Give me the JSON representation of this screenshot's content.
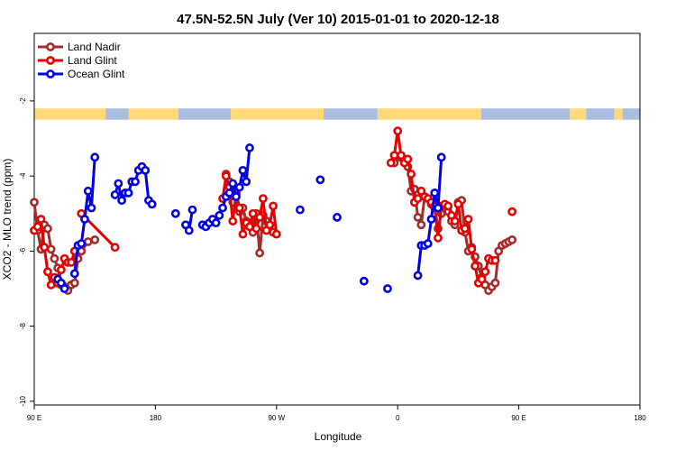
{
  "chart_data": {
    "type": "line",
    "title": "47.5N-52.5N July (Ver 10)   2015-01-01 to 2020-12-18",
    "xlabel": "Longitude",
    "ylabel": "XCO2 - MLO trend (ppm)",
    "x_ticks": [
      {
        "value": 90,
        "label": "90 E"
      },
      {
        "value": 180,
        "label": "180"
      },
      {
        "value": 270,
        "label": "90 W"
      },
      {
        "value": 360,
        "label": "0"
      },
      {
        "value": 450,
        "label": "90 E"
      },
      {
        "value": 540,
        "label": "180"
      }
    ],
    "y_ticks": [
      {
        "value": -2,
        "label": "-2"
      },
      {
        "value": -4,
        "label": "-4"
      },
      {
        "value": -6,
        "label": "-6"
      },
      {
        "value": -8,
        "label": "-8"
      },
      {
        "value": -10,
        "label": "-10"
      }
    ],
    "xlim": [
      90,
      540
    ],
    "ylim": [
      -10.1,
      -0.2
    ],
    "legend_position": "top-left",
    "land_ocean_band": {
      "y_top": -2.2,
      "y_bottom": -2.5,
      "colors": {
        "land": "#ffd97a",
        "ocean": "#a9bedf"
      },
      "segments": [
        {
          "start": 90,
          "end": 143,
          "type": "land"
        },
        {
          "start": 143,
          "end": 160,
          "type": "ocean"
        },
        {
          "start": 160,
          "end": 197,
          "type": "land"
        },
        {
          "start": 197,
          "end": 236,
          "type": "ocean"
        },
        {
          "start": 236,
          "end": 305,
          "type": "land"
        },
        {
          "start": 305,
          "end": 345,
          "type": "ocean"
        },
        {
          "start": 345,
          "end": 422,
          "type": "land"
        },
        {
          "start": 422,
          "end": 488,
          "type": "ocean"
        },
        {
          "start": 488,
          "end": 500,
          "type": "land"
        },
        {
          "start": 500,
          "end": 521,
          "type": "ocean"
        },
        {
          "start": 521,
          "end": 527,
          "type": "land"
        },
        {
          "start": 527,
          "end": 540,
          "type": "ocean"
        }
      ]
    },
    "series": [
      {
        "name": "Land Nadir",
        "color": "#a52a2a",
        "segments": [
          [
            [
              90,
              -4.7
            ],
            [
              92.5,
              -5.45
            ],
            [
              95,
              -5.95
            ],
            [
              97.5,
              -5.3
            ],
            [
              100,
              -5.4
            ],
            [
              102.5,
              -5.95
            ],
            [
              105,
              -6.2
            ],
            [
              107.5,
              -6.45
            ],
            [
              110,
              -6.9
            ],
            [
              112.5,
              -6.95
            ],
            [
              115,
              -7.05
            ],
            [
              117.5,
              -6.9
            ],
            [
              120,
              -6.85
            ],
            [
              122.5,
              -6.2
            ],
            [
              125,
              -6.0
            ],
            [
              130,
              -5.75
            ],
            [
              135,
              -5.7
            ]
          ],
          [
            [
              232.5,
              -3.95
            ],
            [
              235,
              -4.15
            ],
            [
              237.5,
              -4.7
            ],
            [
              240,
              -4.5
            ],
            [
              242.5,
              -4.95
            ],
            [
              245,
              -4.85
            ],
            [
              247.5,
              -5.2
            ],
            [
              250,
              -5.25
            ],
            [
              252.5,
              -5.5
            ],
            [
              255,
              -5.0
            ],
            [
              257.5,
              -6.05
            ],
            [
              260,
              -5.05
            ],
            [
              262.5,
              -5.2
            ],
            [
              265,
              -5.3
            ],
            [
              267.5,
              -5.5
            ]
          ],
          [
            [
              357.5,
              -3.65
            ],
            [
              360,
              -3.5
            ],
            [
              362.5,
              -3.5
            ],
            [
              365,
              -3.55
            ],
            [
              367.5,
              -3.75
            ],
            [
              370,
              -4.4
            ],
            [
              372.5,
              -4.35
            ],
            [
              375,
              -5.1
            ],
            [
              377.5,
              -5.3
            ],
            [
              380,
              -4.55
            ],
            [
              382.5,
              -4.6
            ],
            [
              385,
              -4.75
            ],
            [
              387.5,
              -4.85
            ],
            [
              390,
              -5.4
            ],
            [
              392.5,
              -5.0
            ],
            [
              395,
              -4.85
            ],
            [
              397.5,
              -4.95
            ],
            [
              400,
              -5.2
            ],
            [
              402.5,
              -5.3
            ],
            [
              405,
              -4.7
            ],
            [
              407.5,
              -4.65
            ],
            [
              410,
              -5.5
            ],
            [
              412.5,
              -6.0
            ],
            [
              415,
              -5.9
            ],
            [
              417.5,
              -6.15
            ],
            [
              420,
              -6.4
            ],
            [
              422.5,
              -6.7
            ],
            [
              425,
              -6.9
            ],
            [
              427.5,
              -7.05
            ],
            [
              430,
              -6.95
            ],
            [
              432.5,
              -6.85
            ],
            [
              435,
              -6.0
            ],
            [
              437.5,
              -5.85
            ],
            [
              440,
              -5.8
            ],
            [
              442.5,
              -5.75
            ],
            [
              445,
              -5.7
            ]
          ]
        ]
      },
      {
        "name": "Land Glint",
        "color": "#e60000",
        "segments": [
          [
            [
              90,
              -5.45
            ],
            [
              92.5,
              -5.35
            ],
            [
              95,
              -5.15
            ],
            [
              97.5,
              -5.9
            ],
            [
              100,
              -6.55
            ],
            [
              102.5,
              -6.9
            ],
            [
              105,
              -6.7
            ],
            [
              107.5,
              -6.85
            ],
            [
              110,
              -6.5
            ],
            [
              112.5,
              -6.2
            ],
            [
              115,
              -6.3
            ],
            [
              117.5,
              -6.3
            ],
            [
              120,
              -6.0
            ]
          ],
          [
            [
              125,
              -5.0
            ],
            [
              150,
              -5.9
            ]
          ],
          [
            [
              230,
              -4.6
            ],
            [
              232.5,
              -4.0
            ],
            [
              235,
              -4.3
            ],
            [
              237.5,
              -5.2
            ],
            [
              240,
              -4.45
            ],
            [
              242.5,
              -4.85
            ],
            [
              245,
              -5.55
            ],
            [
              247.5,
              -5.25
            ],
            [
              250,
              -5.35
            ],
            [
              252.5,
              -5.0
            ],
            [
              255,
              -5.4
            ],
            [
              257.5,
              -5.1
            ],
            [
              260,
              -4.6
            ],
            [
              262.5,
              -5.45
            ],
            [
              265,
              -5.3
            ],
            [
              267.5,
              -4.8
            ],
            [
              270,
              -5.55
            ]
          ],
          [
            [
              355,
              -3.65
            ],
            [
              357.5,
              -3.45
            ],
            [
              360,
              -2.8
            ],
            [
              362.5,
              -3.45
            ],
            [
              365,
              -3.65
            ],
            [
              367.5,
              -3.55
            ],
            [
              370,
              -3.95
            ],
            [
              372.5,
              -4.7
            ],
            [
              375,
              -4.6
            ],
            [
              377.5,
              -4.4
            ],
            [
              380,
              -4.55
            ],
            [
              382.5,
              -4.6
            ],
            [
              385,
              -4.7
            ],
            [
              387.5,
              -4.8
            ],
            [
              390,
              -5.65
            ],
            [
              392.5,
              -4.8
            ],
            [
              395,
              -4.75
            ],
            [
              397.5,
              -4.8
            ],
            [
              400,
              -5.05
            ],
            [
              402.5,
              -5.2
            ],
            [
              405,
              -4.75
            ],
            [
              407.5,
              -5.45
            ],
            [
              410,
              -5.4
            ],
            [
              412.5,
              -5.15
            ],
            [
              415,
              -5.95
            ],
            [
              417.5,
              -6.4
            ],
            [
              420,
              -6.85
            ],
            [
              422.5,
              -6.75
            ],
            [
              425,
              -6.55
            ],
            [
              427.5,
              -6.2
            ],
            [
              430,
              -6.25
            ],
            [
              432.5,
              -6.25
            ]
          ],
          [
            [
              445,
              -4.95
            ]
          ]
        ]
      },
      {
        "name": "Ocean Glint",
        "color": "#0000e6",
        "segments": [
          [
            [
              107.5,
              -6.75
            ],
            [
              110,
              -6.85
            ],
            [
              112.5,
              -7.0
            ]
          ],
          [
            [
              120,
              -6.6
            ],
            [
              122.5,
              -5.85
            ],
            [
              125,
              -5.8
            ],
            [
              127.5,
              -5.15
            ],
            [
              130,
              -4.4
            ],
            [
              132.5,
              -4.85
            ],
            [
              135,
              -3.5
            ]
          ],
          [
            [
              150,
              -4.5
            ],
            [
              152.5,
              -4.2
            ],
            [
              155,
              -4.65
            ],
            [
              157.5,
              -4.45
            ],
            [
              160,
              -4.45
            ],
            [
              162.5,
              -4.15
            ],
            [
              165,
              -4.15
            ],
            [
              167.5,
              -3.85
            ],
            [
              170,
              -3.75
            ],
            [
              172.5,
              -3.85
            ],
            [
              175,
              -4.65
            ],
            [
              177.5,
              -4.75
            ]
          ],
          [
            [
              195,
              -5.0
            ]
          ],
          [
            [
              202.5,
              -5.3
            ],
            [
              205,
              -5.45
            ],
            [
              207.5,
              -4.9
            ]
          ],
          [
            [
              215,
              -5.3
            ],
            [
              217.5,
              -5.35
            ],
            [
              220,
              -5.25
            ],
            [
              222.5,
              -5.15
            ],
            [
              225,
              -5.25
            ],
            [
              227.5,
              -5.05
            ],
            [
              230,
              -4.85
            ],
            [
              232.5,
              -4.55
            ],
            [
              235,
              -4.45
            ],
            [
              237.5,
              -4.2
            ],
            [
              240,
              -4.55
            ],
            [
              242.5,
              -4.3
            ],
            [
              245,
              -3.85
            ],
            [
              247.5,
              -4.15
            ],
            [
              250,
              -3.25
            ]
          ],
          [
            [
              287.5,
              -4.9
            ]
          ],
          [
            [
              302.5,
              -4.1
            ]
          ],
          [
            [
              315,
              -5.1
            ]
          ],
          [
            [
              335,
              -6.8
            ]
          ],
          [
            [
              352.5,
              -7.0
            ]
          ],
          [
            [
              375,
              -6.65
            ],
            [
              377.5,
              -5.85
            ],
            [
              380,
              -5.85
            ],
            [
              382.5,
              -5.8
            ],
            [
              385,
              -5.15
            ],
            [
              387.5,
              -4.45
            ],
            [
              390,
              -4.85
            ],
            [
              392.5,
              -3.5
            ]
          ]
        ]
      }
    ]
  }
}
